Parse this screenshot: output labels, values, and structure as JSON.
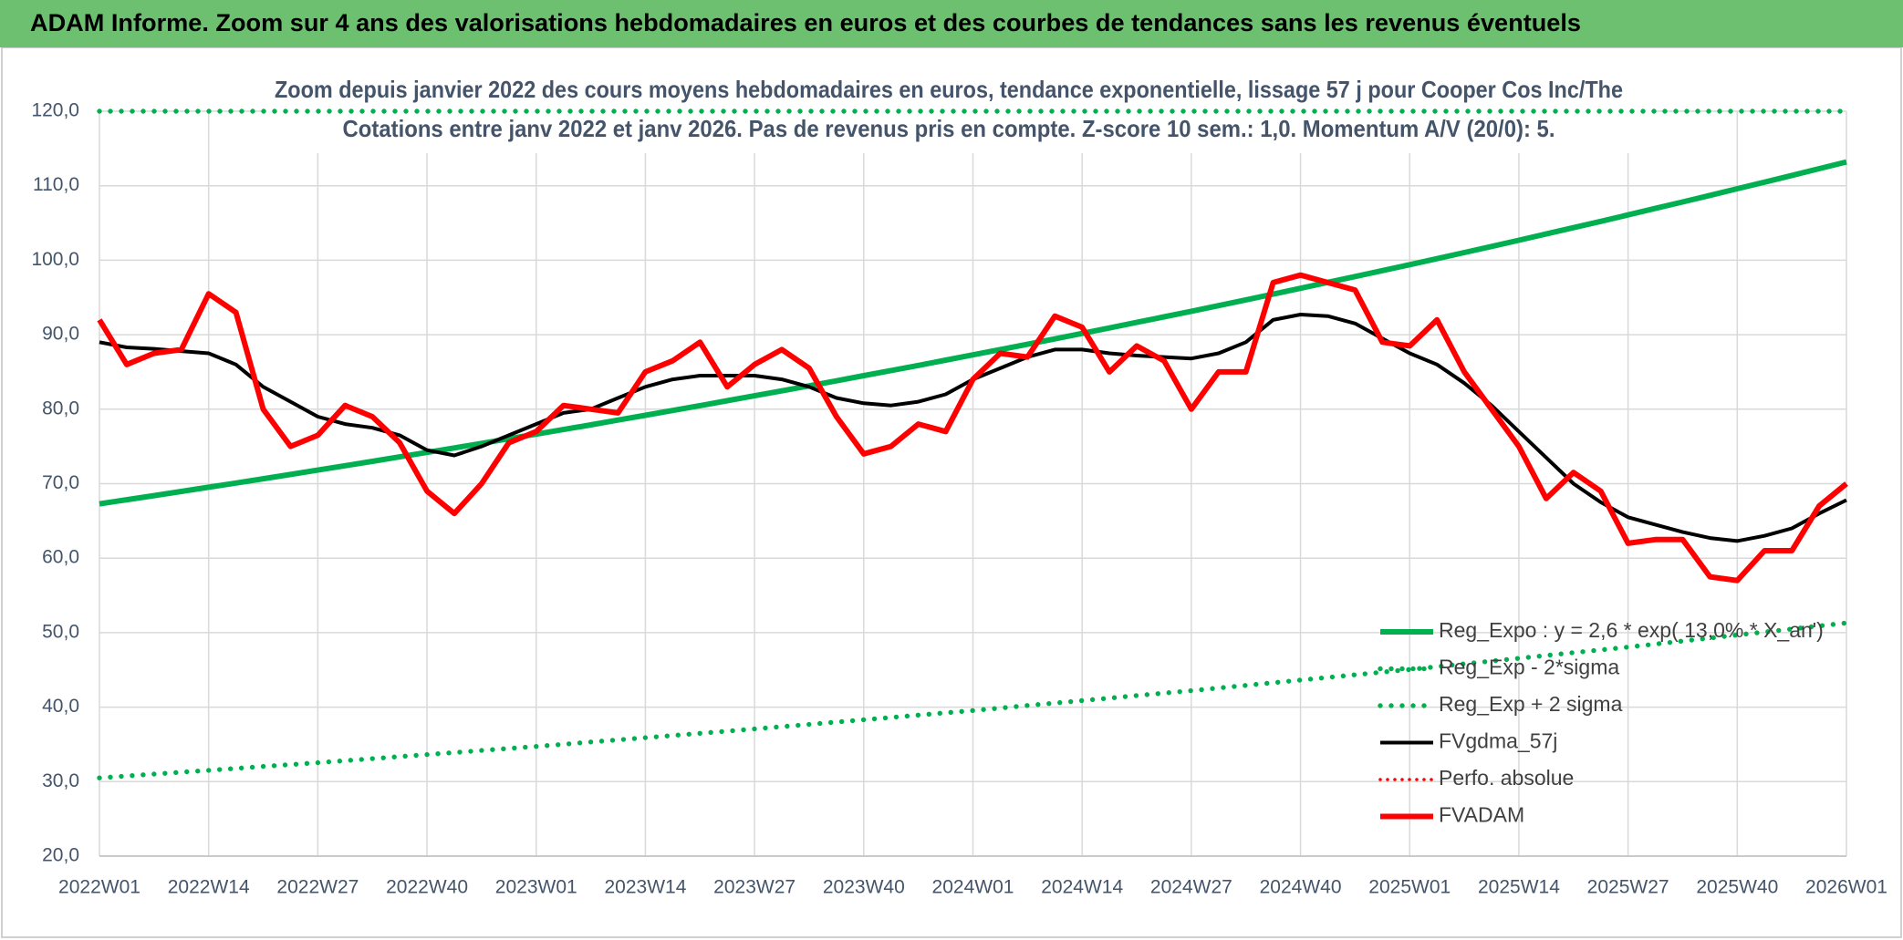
{
  "chart_data": {
    "type": "line",
    "header": "ADAM Informe. Zoom sur 4 ans des valorisations hebdomadaires en euros et des courbes de tendances sans les revenus éventuels",
    "title": "Zoom depuis janvier 2022 des cours moyens hebdomadaires en euros, tendance exponentielle, lissage 57 j pour Cooper Cos Inc/The",
    "subtitle": "Cotations entre janv 2022 et janv 2026. Pas de revenus pris en compte. Z-score 10 sem.: 1,0. Momentum A/V (20/0): 5.",
    "categories": [
      "2022W01",
      null,
      null,
      null,
      "2022W14",
      null,
      null,
      null,
      "2022W27",
      null,
      null,
      null,
      "2022W40",
      null,
      null,
      null,
      "2023W01",
      null,
      null,
      null,
      "2023W14",
      null,
      null,
      null,
      "2023W27",
      null,
      null,
      null,
      "2023W40",
      null,
      null,
      null,
      "2024W01",
      null,
      null,
      null,
      "2024W14",
      null,
      null,
      null,
      "2024W27",
      null,
      null,
      null,
      "2024W40",
      null,
      null,
      null,
      "2025W01",
      null,
      null,
      null,
      "2025W14",
      null,
      null,
      null,
      "2025W27",
      null,
      null,
      null,
      "2025W40",
      null,
      null,
      null,
      "2026W01"
    ],
    "ylim": [
      20,
      120
    ],
    "yticks": [
      {
        "value": 20,
        "label": "20,0"
      },
      {
        "value": 30,
        "label": "30,0"
      },
      {
        "value": 40,
        "label": "40,0"
      },
      {
        "value": 50,
        "label": "50,0"
      },
      {
        "value": 60,
        "label": "60,0"
      },
      {
        "value": 70,
        "label": "70,0"
      },
      {
        "value": 80,
        "label": "80,0"
      },
      {
        "value": 90,
        "label": "90,0"
      },
      {
        "value": 100,
        "label": "100,0"
      },
      {
        "value": 110,
        "label": "110,0"
      },
      {
        "value": 120,
        "label": "120,0"
      }
    ],
    "grid": true,
    "legend": "lower right",
    "series": [
      {
        "name": "Reg_Expo : y = 2,6 * exp( 13,0% * X_an')",
        "color": "#00b050",
        "style": "solid",
        "weight": "bold",
        "values": [
          67.3,
          67.85,
          68.4,
          68.96,
          69.52,
          70.09,
          70.66,
          71.24,
          71.82,
          72.41,
          73.0,
          73.6,
          74.2,
          74.8,
          75.41,
          76.03,
          76.65,
          77.27,
          77.9,
          78.54,
          79.18,
          79.83,
          80.48,
          81.14,
          81.8,
          82.46,
          83.13,
          83.81,
          84.5,
          85.19,
          85.88,
          86.58,
          87.29,
          88.0,
          88.72,
          89.44,
          90.17,
          90.91,
          91.65,
          92.4,
          93.15,
          93.91,
          94.68,
          95.45,
          96.23,
          97.02,
          97.81,
          98.61,
          99.4,
          100.21,
          101.03,
          101.85,
          102.68,
          103.52,
          104.37,
          105.22,
          106.08,
          106.95,
          107.82,
          108.7,
          109.59,
          110.48,
          111.38,
          112.29,
          113.2
        ]
      },
      {
        "name": "Reg_Exp - 2*sigma",
        "color": "#00b050",
        "style": "dotted",
        "weight": "bold",
        "values": [
          30.5,
          30.76,
          31.01,
          31.27,
          31.52,
          31.78,
          32.04,
          32.29,
          32.55,
          32.82,
          33.09,
          33.37,
          33.64,
          33.91,
          34.18,
          34.46,
          34.73,
          35.02,
          35.32,
          35.61,
          35.9,
          36.19,
          36.49,
          36.78,
          37.07,
          37.38,
          37.69,
          38.0,
          38.31,
          38.62,
          38.93,
          39.24,
          39.55,
          39.88,
          40.22,
          40.55,
          40.88,
          41.21,
          41.55,
          41.88,
          42.21,
          42.57,
          42.92,
          43.28,
          43.63,
          43.99,
          44.34,
          44.7,
          45.05,
          45.43,
          45.81,
          46.18,
          46.56,
          46.94,
          47.32,
          47.69,
          48.07,
          48.47,
          48.88,
          49.28,
          49.69,
          50.09,
          50.49,
          50.9,
          51.3
        ]
      },
      {
        "name": "Reg_Exp + 2 sigma",
        "color": "#00b050",
        "style": "dotted",
        "weight": "bold",
        "values": [
          120,
          120,
          120,
          120,
          120,
          120,
          120,
          120,
          120,
          120,
          120,
          120,
          120,
          120,
          120,
          120,
          120,
          120,
          120,
          120,
          120,
          120,
          120,
          120,
          120,
          120,
          120,
          120,
          120,
          120,
          120,
          120,
          120,
          120,
          120,
          120,
          120,
          120,
          120,
          120,
          120,
          120,
          120,
          120,
          120,
          120,
          120,
          120,
          120,
          120,
          120,
          120,
          120,
          120,
          120,
          120,
          120,
          120,
          120,
          120,
          120,
          120,
          120,
          120,
          120
        ]
      },
      {
        "name": "FVgdma_57j",
        "color": "#000000",
        "style": "solid",
        "weight": "normal",
        "values": [
          89.0,
          88.3,
          88.1,
          87.8,
          87.5,
          86.0,
          83,
          81,
          79,
          78,
          77.5,
          76.5,
          74.5,
          73.8,
          75,
          76.5,
          78,
          79.5,
          80,
          81.5,
          83,
          84,
          84.5,
          84.5,
          84.5,
          84,
          83,
          81.5,
          80.8,
          80.5,
          81,
          82,
          84,
          85.5,
          87,
          88,
          88,
          87.5,
          87.2,
          87,
          86.8,
          87.5,
          89,
          92,
          92.7,
          92.5,
          91.5,
          89.5,
          87.5,
          86,
          83.5,
          80.5,
          77,
          73.5,
          70,
          67.5,
          65.5,
          64.5,
          63.5,
          62.7,
          62.3,
          63,
          64,
          66,
          67.8
        ]
      },
      {
        "name": "Perfo. absolue",
        "color": "#ff0000",
        "style": "dotted",
        "weight": "normal",
        "values": [
          null,
          null,
          null,
          null,
          null,
          null,
          null,
          null,
          null,
          null,
          null,
          null,
          null,
          null,
          null,
          null,
          null,
          null,
          null,
          null,
          null,
          null,
          null,
          null,
          null,
          null,
          null,
          null,
          null,
          null,
          null,
          null,
          null,
          null,
          null,
          null,
          null,
          null,
          null,
          null,
          null,
          null,
          null,
          null,
          null,
          null,
          null,
          null,
          null,
          null,
          null,
          null,
          null,
          null,
          null,
          null,
          null,
          null,
          null,
          null,
          null,
          null,
          null,
          null,
          null
        ]
      },
      {
        "name": "FVADAM",
        "color": "#ff0000",
        "style": "solid",
        "weight": "bold",
        "values": [
          92,
          86,
          87.5,
          88,
          95.5,
          93,
          80,
          75,
          76.5,
          80.5,
          79,
          75.5,
          69,
          66,
          70,
          75.5,
          77,
          80.5,
          80,
          79.5,
          85,
          86.5,
          89,
          83,
          86,
          88,
          85.5,
          79,
          74,
          75,
          78,
          77,
          84,
          87.5,
          87,
          92.5,
          91,
          85,
          88.5,
          86.5,
          80,
          85,
          85,
          97,
          98,
          97,
          96,
          89,
          88.5,
          92,
          85,
          80,
          75,
          68,
          71.5,
          69,
          62,
          62.5,
          62.5,
          57.5,
          57,
          61,
          61,
          67,
          70
        ]
      }
    ]
  }
}
